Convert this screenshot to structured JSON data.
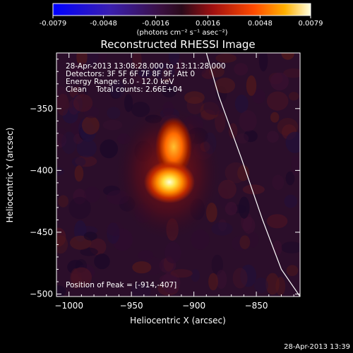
{
  "chart_data": {
    "type": "heatmap",
    "title": "Reconstructed RHESSI Image",
    "xlabel": "Heliocentric X (arcsec)",
    "ylabel": "Heliocentric Y (arcsec)",
    "xlim": [
      -1010,
      -815
    ],
    "ylim": [
      -502,
      -305
    ],
    "x_ticks": [
      -1000,
      -950,
      -900,
      -850
    ],
    "y_ticks": [
      -500,
      -450,
      -400,
      -350
    ],
    "colorbar": {
      "range": [
        -0.0079,
        0.0079
      ],
      "ticks": [
        -0.0079,
        -0.0048,
        -0.0016,
        0.0016,
        0.0048,
        0.0079
      ],
      "tick_labels": [
        "-0.0079",
        "-0.0048",
        "-0.0016",
        "0.0016",
        "0.0048",
        "0.0079"
      ],
      "unit_label": "(photons cm⁻² s⁻¹ asec⁻²)"
    },
    "annotations": [
      "28-Apr-2013 13:08:28.000 to 13:11:28.000",
      "Detectors: 3F 5F 6F 7F 8F 9F, Att 0",
      "Energy Range: 6.0 - 12.0 keV",
      "Clean    Total counts: 2.66E+04"
    ],
    "peak_label": "Position of Peak = [-914,-407]",
    "peak": [
      -914,
      -407
    ],
    "source_extension": [
      -905,
      -375
    ],
    "limb_curve": [
      [
        -890,
        -305
      ],
      [
        -880,
        -340
      ],
      [
        -862,
        -390
      ],
      [
        -845,
        -440
      ],
      [
        -830,
        -480
      ],
      [
        -815,
        -502
      ]
    ]
  },
  "footer": {
    "timestamp": "28-Apr-2013 13:39"
  }
}
